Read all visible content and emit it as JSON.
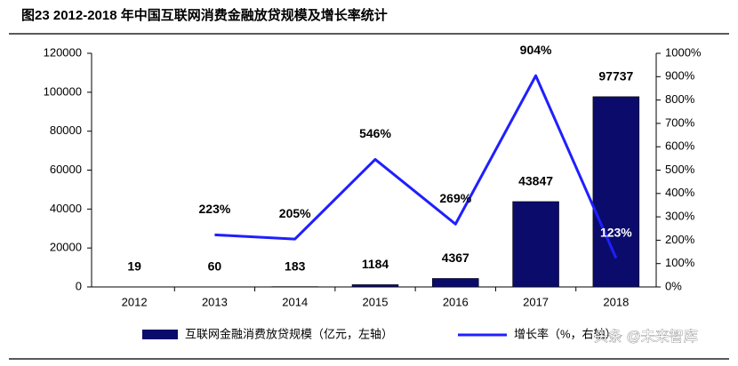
{
  "chart_data": {
    "type": "bar",
    "title": "图23 2012-2018 年中国互联网消费金融放贷规模及增长率统计",
    "categories": [
      "2012",
      "2013",
      "2014",
      "2015",
      "2016",
      "2017",
      "2018"
    ],
    "series": [
      {
        "name": "互联网金融消费放贷规模（亿元，左轴）",
        "type": "bar",
        "color": "#0b0b6b",
        "values": [
          19,
          60,
          183,
          1184,
          4367,
          43847,
          97737
        ]
      },
      {
        "name": "增长率（%，右轴）",
        "type": "line",
        "axis": "y2",
        "color": "#1f1fff",
        "values": [
          null,
          223,
          205,
          546,
          269,
          904,
          123
        ],
        "value_labels": [
          null,
          "223%",
          "205%",
          "546%",
          "269%",
          "904%",
          "123%"
        ]
      }
    ],
    "ylim": [
      0,
      120000
    ],
    "yticks": [
      0,
      20000,
      40000,
      60000,
      80000,
      100000,
      120000
    ],
    "y2lim": [
      0,
      1000
    ],
    "y2ticks": [
      {
        "value": 0,
        "label": "0%"
      },
      {
        "value": 100,
        "label": "100%"
      },
      {
        "value": 200,
        "label": "200%"
      },
      {
        "value": 300,
        "label": "300%"
      },
      {
        "value": 400,
        "label": "400%"
      },
      {
        "value": 500,
        "label": "500%"
      },
      {
        "value": 600,
        "label": "600%"
      },
      {
        "value": 700,
        "label": "700%"
      },
      {
        "value": 800,
        "label": "800%"
      },
      {
        "value": 900,
        "label": "900%"
      },
      {
        "value": 1000,
        "label": "1000%"
      }
    ],
    "watermark": "头条 @未来智库"
  }
}
